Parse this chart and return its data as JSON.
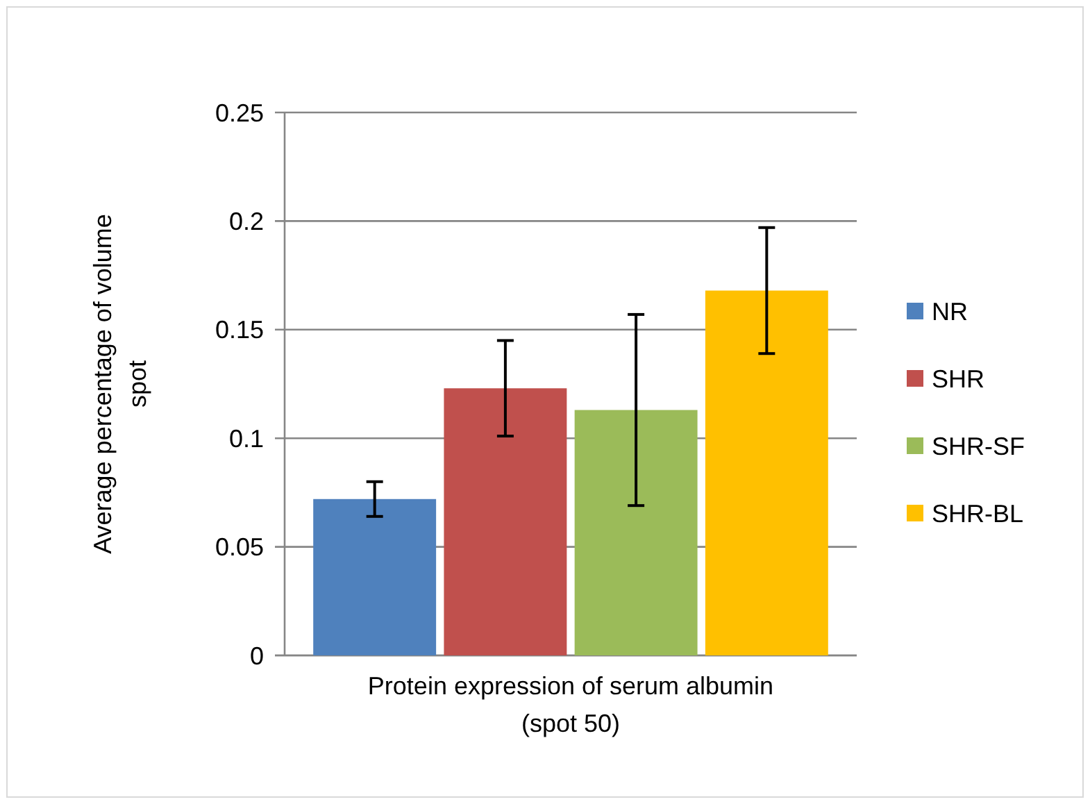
{
  "chart_data": {
    "type": "bar",
    "categories": [
      "Protein expression of serum albumin (spot 50)"
    ],
    "ylabel": "Average percentage of volume spot",
    "series": [
      {
        "name": "NR",
        "color": "#4f81bd",
        "values": [
          0.072
        ],
        "errors": [
          0.008
        ]
      },
      {
        "name": "SHR",
        "color": "#c0504d",
        "values": [
          0.123
        ],
        "errors": [
          0.022
        ]
      },
      {
        "name": "SHR-SF",
        "color": "#9bbb59",
        "values": [
          0.113
        ],
        "errors": [
          0.044
        ]
      },
      {
        "name": "SHR-BL",
        "color": "#ffc000",
        "values": [
          0.168
        ],
        "errors": [
          0.029
        ]
      }
    ],
    "ylim": [
      0,
      0.25
    ],
    "yticks": [
      0,
      0.05,
      0.1,
      0.15,
      0.2,
      0.25
    ],
    "grid": "y",
    "legend": "right"
  }
}
